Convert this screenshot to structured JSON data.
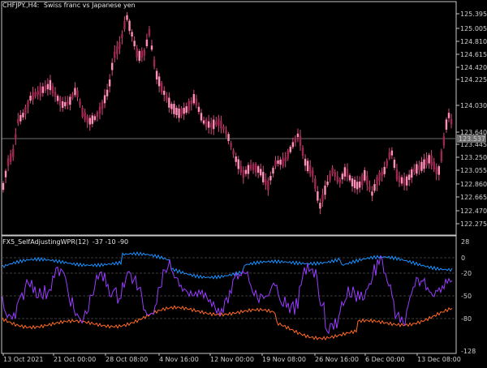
{
  "main_chart": {
    "symbol": "CHFJPY.,H4:",
    "description": "Swiss franc vs Japanese yen",
    "price_labels": [
      "125.395",
      "125.005",
      "124.810",
      "124.615",
      "124.420",
      "124.225",
      "124.030",
      "123.640",
      "123.445",
      "123.250",
      "123.055",
      "122.860",
      "122.665",
      "122.470",
      "122.275"
    ],
    "current_price": "123.537",
    "colors": {
      "bull": "#ff8fb8",
      "bear": "#a0264f",
      "wick": "#d24d7f",
      "price_line": "#909090",
      "current_bg": "#707070"
    }
  },
  "indicator": {
    "name": "FX5_SelfAdjustingWPR(12)",
    "values_text": "-37 -10 -90",
    "scale_labels": [
      "28",
      "0",
      "-20",
      "-50",
      "-80",
      "-128"
    ],
    "colors": {
      "upper_band": "#1e90ff",
      "lower_band": "#ff6a2a",
      "wpr": "#9a3dff",
      "levels": "#505050"
    }
  },
  "time_axis": {
    "labels": [
      "13 Oct 2021",
      "21 Oct 00:00",
      "28 Oct 08:00",
      "4 Nov 16:00",
      "12 Nov 00:00",
      "19 Nov 08:00",
      "26 Nov 16:00",
      "6 Dec 00:00",
      "13 Dec 08:00"
    ]
  }
}
